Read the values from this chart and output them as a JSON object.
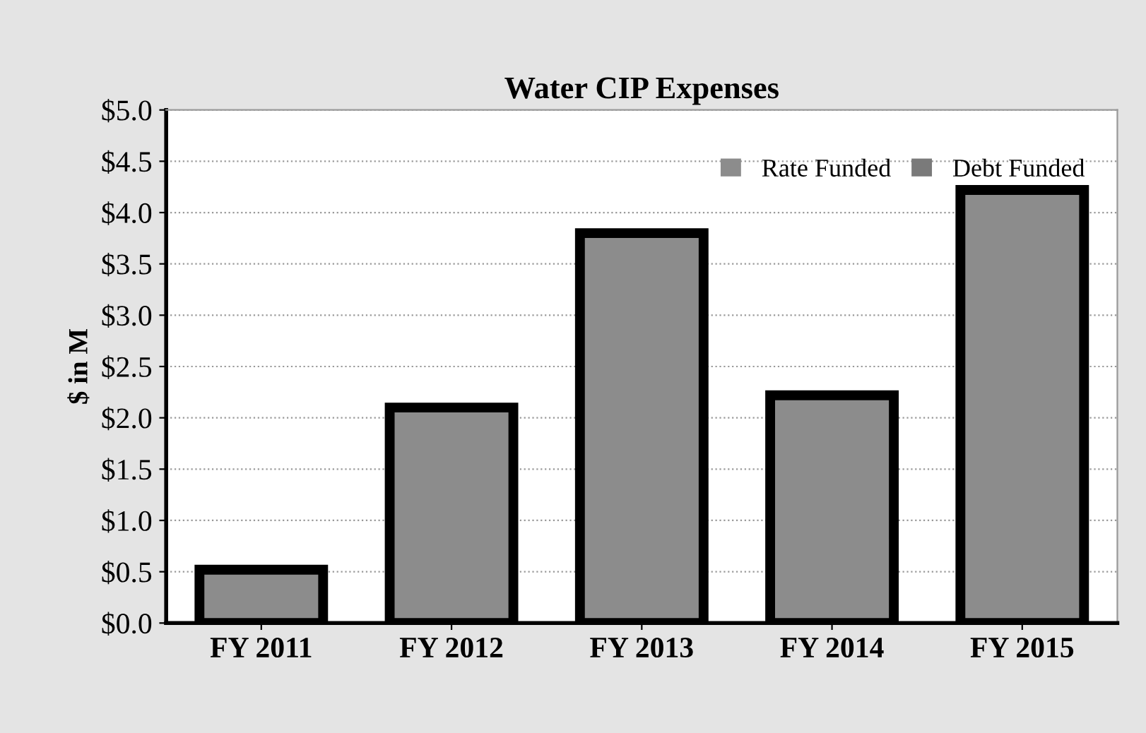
{
  "chart_data": {
    "type": "bar",
    "title": "Water CIP Expenses",
    "ylabel": "$ in M",
    "categories": [
      "FY 2011",
      "FY 2012",
      "FY 2013",
      "FY 2014",
      "FY 2015"
    ],
    "series": [
      {
        "name": "Rate Funded",
        "color": "#8c8c8c",
        "values": [
          0.52,
          2.1,
          3.8,
          2.22,
          4.22
        ]
      },
      {
        "name": "Debt Funded",
        "color": "#7a7a7a",
        "values": [
          null,
          null,
          null,
          null,
          null
        ]
      }
    ],
    "ylim": [
      0,
      5
    ],
    "yticks": [
      {
        "value": 0,
        "label": "$0.0"
      },
      {
        "value": 0.5,
        "label": "$0.5"
      },
      {
        "value": 1,
        "label": "$1.0"
      },
      {
        "value": 1.5,
        "label": "$1.5"
      },
      {
        "value": 2,
        "label": "$2.0"
      },
      {
        "value": 2.5,
        "label": "$2.5"
      },
      {
        "value": 3,
        "label": "$3.0"
      },
      {
        "value": 3.5,
        "label": "$3.5"
      },
      {
        "value": 4,
        "label": "$4.0"
      },
      {
        "value": 4.5,
        "label": "$4.5"
      },
      {
        "value": 5,
        "label": "$5.0"
      }
    ],
    "grid": "y",
    "legend": "top right"
  }
}
